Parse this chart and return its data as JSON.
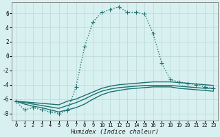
{
  "xlabel": "Humidex (Indice chaleur)",
  "bg_color": "#d8f0f0",
  "grid_color": "#b8d8d8",
  "line_color": "#1a7070",
  "xlim": [
    -0.5,
    23.5
  ],
  "ylim": [
    -9.0,
    7.5
  ],
  "yticks": [
    -8,
    -6,
    -4,
    -2,
    0,
    2,
    4,
    6
  ],
  "xticks": [
    0,
    1,
    2,
    3,
    4,
    5,
    6,
    7,
    8,
    9,
    10,
    11,
    12,
    13,
    14,
    15,
    16,
    17,
    18,
    19,
    20,
    21,
    22,
    23
  ],
  "lines": [
    {
      "x": [
        0,
        1,
        2,
        3,
        4,
        5,
        6,
        7,
        8,
        9,
        10,
        11,
        12,
        13,
        14,
        15,
        16,
        17,
        18,
        19,
        20,
        21,
        22,
        23
      ],
      "y": [
        -6.3,
        -6.4,
        -6.5,
        -6.6,
        -6.7,
        -6.8,
        -6.3,
        -6.0,
        -5.5,
        -5.0,
        -4.5,
        -4.2,
        -4.0,
        -3.9,
        -3.8,
        -3.7,
        -3.6,
        -3.6,
        -3.6,
        -3.7,
        -3.8,
        -3.9,
        -4.0,
        -4.1
      ],
      "style": "-",
      "marker": null,
      "linewidth": 1.0
    },
    {
      "x": [
        0,
        1,
        2,
        3,
        4,
        5,
        6,
        7,
        8,
        9,
        10,
        11,
        12,
        13,
        14,
        15,
        16,
        17,
        18,
        19,
        20,
        21,
        22,
        23
      ],
      "y": [
        -6.3,
        -6.5,
        -6.7,
        -6.9,
        -7.1,
        -7.3,
        -6.9,
        -6.5,
        -6.0,
        -5.4,
        -4.9,
        -4.6,
        -4.4,
        -4.3,
        -4.2,
        -4.1,
        -4.1,
        -4.1,
        -4.1,
        -4.2,
        -4.3,
        -4.4,
        -4.5,
        -4.5
      ],
      "style": "-",
      "marker": null,
      "linewidth": 1.0
    },
    {
      "x": [
        0,
        1,
        2,
        3,
        4,
        5,
        6,
        7,
        8,
        9,
        10,
        11,
        12,
        13,
        14,
        15,
        16,
        17,
        18,
        19,
        20,
        21,
        22,
        23
      ],
      "y": [
        -6.3,
        -6.7,
        -7.0,
        -7.2,
        -7.5,
        -7.8,
        -7.5,
        -7.2,
        -6.7,
        -6.0,
        -5.4,
        -5.0,
        -4.8,
        -4.6,
        -4.5,
        -4.4,
        -4.3,
        -4.3,
        -4.3,
        -4.5,
        -4.6,
        -4.7,
        -4.8,
        -4.9
      ],
      "style": "-",
      "marker": null,
      "linewidth": 1.0
    },
    {
      "x": [
        0,
        1,
        2,
        3,
        4,
        5,
        6,
        7,
        8,
        9,
        10,
        11,
        12,
        13,
        14,
        15,
        16,
        17,
        18,
        19,
        20,
        21,
        22,
        23
      ],
      "y": [
        -6.3,
        -7.5,
        -7.2,
        -7.5,
        -7.8,
        -8.0,
        -7.6,
        -4.3,
        1.3,
        4.8,
        6.1,
        6.5,
        6.9,
        6.1,
        6.1,
        5.9,
        3.1,
        -1.0,
        -3.3,
        -3.6,
        -3.8,
        -4.0,
        -4.3,
        -4.5
      ],
      "style": ":",
      "marker": "+",
      "markersize": 5,
      "linewidth": 1.0
    }
  ]
}
